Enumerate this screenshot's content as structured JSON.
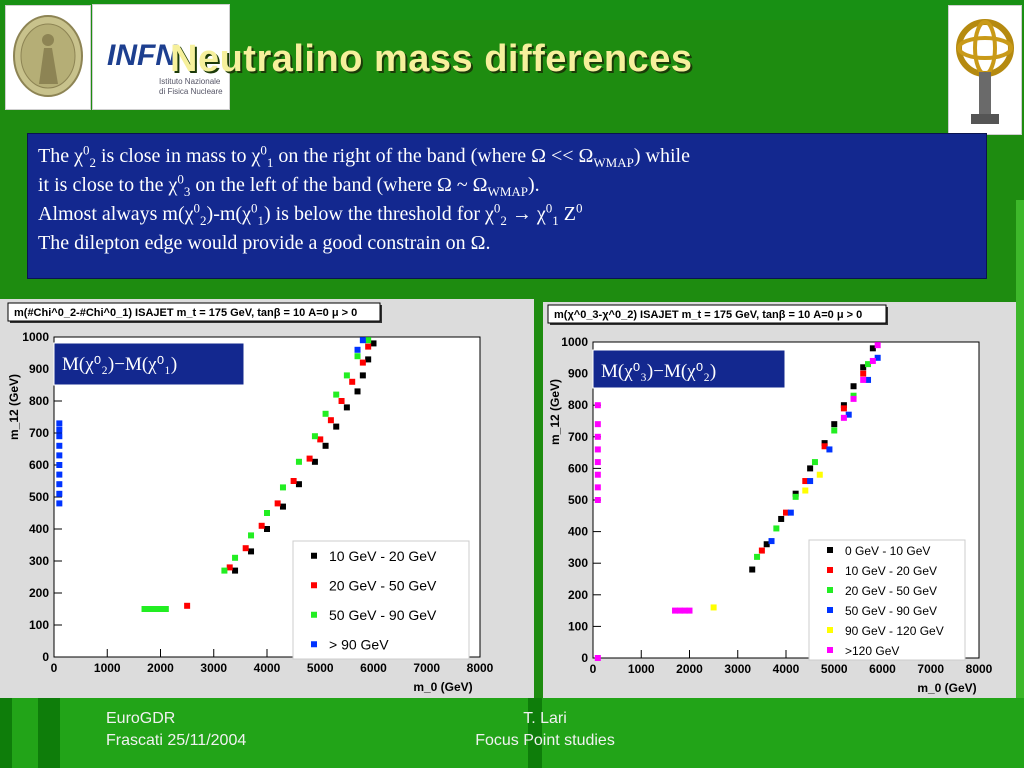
{
  "title": "Neutralino mass differences",
  "info_box": {
    "line1": {
      "p1": "The χ",
      "s1": "0",
      "b1": "2",
      "p2": " is close in mass to χ",
      "s2": "0",
      "b2": "1",
      "p3": " on the right of the band (where Ω << Ω",
      "b3": "WMAP",
      "p4": ") while"
    },
    "line2": {
      "p1": "it is close to the χ",
      "s1": "0",
      "b1": "3",
      "p2": " on the left of the band (where Ω ~ Ω",
      "b2": "WMAP",
      "p3": ")."
    },
    "line3": {
      "p1": "Almost always m(χ",
      "s1": "0",
      "b1": "2",
      "p2": ")-m(χ",
      "s2": "0",
      "b2": "1",
      "p3": ") is below the threshold for χ",
      "s3": "0",
      "b3": "2",
      "p4": "  → χ",
      "s4": "0",
      "b4": "1",
      "p5": " Z",
      "s5": "0"
    },
    "line4": "The dilepton edge would provide a good constrain on Ω."
  },
  "logos": {
    "infn_word": "INFN",
    "infn_line1": "Istituto Nazionale",
    "infn_line2": "di Fisica Nucleare"
  },
  "footer": {
    "left_line1": "EuroGDR",
    "left_line2": "Frascati 25/11/2004",
    "right_line1": "T. Lari",
    "right_line2": "Focus Point studies"
  },
  "colors": {
    "background": "#1e8c10",
    "box": "#13288f",
    "title": "#f6f09c",
    "black": "#000000",
    "red": "#ff0000",
    "green": "#22ee22",
    "blue": "#0033ff",
    "yellow": "#ffff00",
    "magenta": "#ff00ff"
  },
  "chart_data": [
    {
      "type": "scatter",
      "title": "m(#Chi^0_2-#Chi^0_1) ISAJET m_t = 175 GeV, tanβ = 10 A=0 μ > 0",
      "overlay_label": "M(χ⁰₂)−M(χ⁰₁)",
      "xlabel": "m_0 (GeV)",
      "ylabel": "m_12 (GeV)",
      "xlim": [
        0,
        8000
      ],
      "ylim": [
        0,
        1000
      ],
      "xticks": [
        0,
        1000,
        2000,
        3000,
        4000,
        5000,
        6000,
        7000,
        8000
      ],
      "yticks": [
        0,
        100,
        200,
        300,
        400,
        500,
        600,
        700,
        800,
        900,
        1000
      ],
      "legend_position": "bottom-right",
      "series": [
        {
          "name": "10 GeV - 20 GeV",
          "color": "#000000",
          "points": [
            [
              3400,
              270
            ],
            [
              3700,
              330
            ],
            [
              4000,
              400
            ],
            [
              4300,
              470
            ],
            [
              4600,
              540
            ],
            [
              4900,
              610
            ],
            [
              5100,
              660
            ],
            [
              5300,
              720
            ],
            [
              5500,
              780
            ],
            [
              5700,
              830
            ],
            [
              5800,
              880
            ],
            [
              5900,
              930
            ],
            [
              6000,
              980
            ]
          ]
        },
        {
          "name": "20 GeV - 50 GeV",
          "color": "#ff0000",
          "points": [
            [
              2500,
              160
            ],
            [
              3300,
              280
            ],
            [
              3600,
              340
            ],
            [
              3900,
              410
            ],
            [
              4200,
              480
            ],
            [
              4500,
              550
            ],
            [
              4800,
              620
            ],
            [
              5000,
              680
            ],
            [
              5200,
              740
            ],
            [
              5400,
              800
            ],
            [
              5600,
              860
            ],
            [
              5800,
              920
            ],
            [
              5900,
              970
            ]
          ]
        },
        {
          "name": "50 GeV - 90 GeV",
          "color": "#22ee22",
          "points": [
            [
              1700,
              150
            ],
            [
              1800,
              150
            ],
            [
              1900,
              150
            ],
            [
              2000,
              150
            ],
            [
              2100,
              150
            ],
            [
              3200,
              270
            ],
            [
              3400,
              310
            ],
            [
              3700,
              380
            ],
            [
              4000,
              450
            ],
            [
              4300,
              530
            ],
            [
              4600,
              610
            ],
            [
              4900,
              690
            ],
            [
              5100,
              760
            ],
            [
              5300,
              820
            ],
            [
              5500,
              880
            ],
            [
              5700,
              940
            ],
            [
              5900,
              990
            ]
          ]
        },
        {
          "name": "> 90 GeV",
          "color": "#0033ff",
          "points": [
            [
              100,
              480
            ],
            [
              100,
              510
            ],
            [
              100,
              540
            ],
            [
              100,
              570
            ],
            [
              100,
              600
            ],
            [
              100,
              630
            ],
            [
              100,
              660
            ],
            [
              100,
              690
            ],
            [
              100,
              710
            ],
            [
              100,
              730
            ],
            [
              5700,
              960
            ],
            [
              5800,
              990
            ]
          ]
        }
      ]
    },
    {
      "type": "scatter",
      "title": "m(χ^0_3-χ^0_2) ISAJET m_t = 175 GeV, tanβ = 10 A=0 μ > 0",
      "overlay_label": "M(χ⁰₃)−M(χ⁰₂)",
      "xlabel": "m_0 (GeV)",
      "ylabel": "m_12 (GeV)",
      "xlim": [
        0,
        8000
      ],
      "ylim": [
        0,
        1000
      ],
      "xticks": [
        0,
        1000,
        2000,
        3000,
        4000,
        5000,
        6000,
        7000,
        8000
      ],
      "yticks": [
        0,
        100,
        200,
        300,
        400,
        500,
        600,
        700,
        800,
        900,
        1000
      ],
      "legend_position": "bottom-right",
      "series": [
        {
          "name": "0 GeV - 10 GeV",
          "color": "#000000",
          "points": [
            [
              3300,
              280
            ],
            [
              3600,
              360
            ],
            [
              3900,
              440
            ],
            [
              4200,
              520
            ],
            [
              4500,
              600
            ],
            [
              4800,
              680
            ],
            [
              5000,
              740
            ],
            [
              5200,
              800
            ],
            [
              5400,
              860
            ],
            [
              5600,
              920
            ],
            [
              5800,
              980
            ]
          ]
        },
        {
          "name": "10 GeV - 20 GeV",
          "color": "#ff0000",
          "points": [
            [
              3500,
              340
            ],
            [
              4000,
              460
            ],
            [
              4400,
              560
            ],
            [
              4800,
              670
            ],
            [
              5200,
              790
            ],
            [
              5600,
              900
            ]
          ]
        },
        {
          "name": "20 GeV - 50 GeV",
          "color": "#22ee22",
          "points": [
            [
              3400,
              320
            ],
            [
              3800,
              410
            ],
            [
              4200,
              510
            ],
            [
              4600,
              620
            ],
            [
              5000,
              720
            ],
            [
              5400,
              830
            ],
            [
              5700,
              930
            ]
          ]
        },
        {
          "name": "50 GeV - 90 GeV",
          "color": "#0033ff",
          "points": [
            [
              3700,
              370
            ],
            [
              4100,
              460
            ],
            [
              4500,
              560
            ],
            [
              4900,
              660
            ],
            [
              5300,
              770
            ],
            [
              5700,
              880
            ],
            [
              5900,
              950
            ]
          ]
        },
        {
          "name": "90 GeV - 120 GeV",
          "color": "#ffff00",
          "points": [
            [
              2500,
              160
            ],
            [
              4400,
              530
            ],
            [
              4700,
              580
            ]
          ]
        },
        {
          "name": ">120 GeV",
          "color": "#ff00ff",
          "points": [
            [
              100,
              0
            ],
            [
              100,
              500
            ],
            [
              100,
              540
            ],
            [
              100,
              580
            ],
            [
              100,
              620
            ],
            [
              100,
              660
            ],
            [
              100,
              700
            ],
            [
              100,
              740
            ],
            [
              100,
              800
            ],
            [
              1700,
              150
            ],
            [
              1800,
              150
            ],
            [
              1900,
              150
            ],
            [
              2000,
              150
            ],
            [
              5200,
              760
            ],
            [
              5400,
              820
            ],
            [
              5600,
              880
            ],
            [
              5800,
              940
            ],
            [
              5900,
              990
            ]
          ]
        }
      ]
    }
  ]
}
